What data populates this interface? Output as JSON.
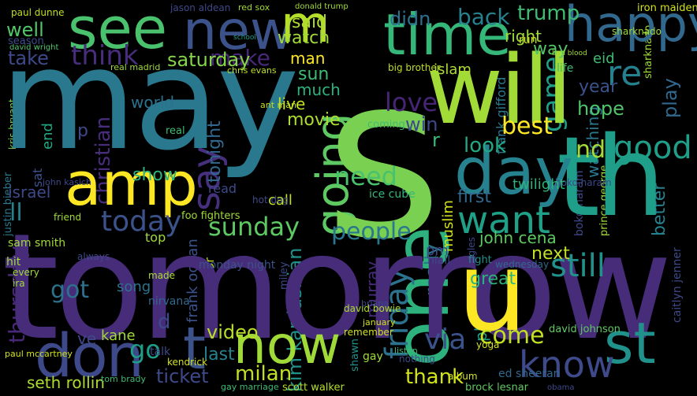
{
  "words": {
    "tomorrow": {
      "text": "tomorrow",
      "color": "#472c7a"
    },
    "may": {
      "text": "may",
      "color": "#2a788e"
    },
    "s": {
      "text": "s",
      "color": "#7ad151"
    },
    "will": {
      "text": "will",
      "color": "#a2da37"
    },
    "th": {
      "text": "th",
      "color": "#1f9e89"
    },
    "amp": {
      "text": "amp",
      "color": "#fde725"
    },
    "day": {
      "text": "day",
      "color": "#26828e"
    },
    "one": {
      "text": "one",
      "color": "#2db27d"
    },
    "u": {
      "text": "u",
      "color": "#fde725"
    },
    "time": {
      "text": "time",
      "color": "#35b779"
    },
    "happy": {
      "text": "happy",
      "color": "#31688e"
    },
    "see": {
      "text": "see",
      "color": "#4ac16d"
    },
    "new": {
      "text": "new",
      "color": "#3b528b"
    },
    "m": {
      "text": "m",
      "color": "#b5de2b"
    },
    "don": {
      "text": "don",
      "color": "#3e4989"
    },
    "t_bottom": {
      "text": "t",
      "color": "#3b528b"
    },
    "now": {
      "text": "now",
      "color": "#a0da39"
    },
    "st": {
      "text": "st",
      "color": "#21918c"
    },
    "know": {
      "text": "know",
      "color": "#3e4a89"
    },
    "friday": {
      "text": "friday",
      "color": "#2c728e"
    },
    "want": {
      "text": "want",
      "color": "#1fa187"
    },
    "going": {
      "text": "going",
      "color": "#5ec962"
    },
    "people": {
      "text": "people",
      "color": "#2a788e"
    },
    "say": {
      "text": "say",
      "color": "#46307e"
    },
    "sunday": {
      "text": "sunday",
      "color": "#5ec962"
    },
    "today": {
      "text": "today",
      "color": "#3b528b"
    },
    "still": {
      "text": "still",
      "color": "#21918c"
    },
    "good": {
      "text": "good",
      "color": "#1f9e89"
    },
    "come": {
      "text": "come",
      "color": "#c2df23"
    },
    "love": {
      "text": "love",
      "color": "#482475"
    },
    "think": {
      "text": "think",
      "color": "#472d7b"
    },
    "make": {
      "text": "make",
      "color": "#482878"
    },
    "back": {
      "text": "back",
      "color": "#26828e"
    },
    "trump": {
      "text": "trump",
      "color": "#3fbc73"
    },
    "didn": {
      "text": "didn",
      "color": "#2c728e"
    },
    "well": {
      "text": "well",
      "color": "#52c569"
    },
    "take": {
      "text": "take",
      "color": "#3e4a89"
    },
    "saturday": {
      "text": "saturday",
      "color": "#86d549"
    },
    "watch": {
      "text": "watch",
      "color": "#a0da39"
    },
    "said": {
      "text": "said",
      "color": "#addc30"
    },
    "game": {
      "text": "game",
      "color": "#1f9e89"
    },
    "nd": {
      "text": "nd",
      "color": "#a5db36"
    },
    "re": {
      "text": "re",
      "color": "#26818e"
    },
    "play": {
      "text": "play",
      "color": "#31688e"
    },
    "best": {
      "text": "best",
      "color": "#fde725"
    },
    "look": {
      "text": "look",
      "color": "#22a884"
    },
    "need": {
      "text": "need",
      "color": "#4ac16d"
    },
    "via": {
      "text": "via",
      "color": "#3b528b"
    },
    "kim_kardashian": {
      "text": "kim kardashian",
      "color": "#21918c"
    },
    "got": {
      "text": "got",
      "color": "#2c728e"
    },
    "go": {
      "text": "go",
      "color": "#1f9e89"
    },
    "thursday": {
      "text": "thursday",
      "color": "#482878"
    },
    "video": {
      "text": "video",
      "color": "#b8de29"
    },
    "ticket": {
      "text": "ticket",
      "color": "#3e4989"
    },
    "milan": {
      "text": "milan",
      "color": "#c2df23"
    },
    "thank": {
      "text": "thank",
      "color": "#d2e21b"
    },
    "last": {
      "text": "last",
      "color": "#26828e"
    },
    "seth_rollin": {
      "text": "seth rollin",
      "color": "#addc30"
    },
    "muslim": {
      "text": "muslim",
      "color": "#d2e21b"
    },
    "really": {
      "text": "really",
      "color": "#2a788e"
    },
    "great": {
      "text": "great",
      "color": "#2db27d"
    },
    "first": {
      "text": "first",
      "color": "#31688e"
    },
    "next": {
      "text": "next",
      "color": "#c2df23"
    },
    "hope": {
      "text": "hope",
      "color": "#50c46a"
    },
    "year": {
      "text": "year",
      "color": "#3b528b"
    },
    "tonight": {
      "text": "tonight",
      "color": "#31688e"
    },
    "show": {
      "text": "show",
      "color": "#2db27d"
    },
    "christian": {
      "text": "christian",
      "color": "#472d7b"
    },
    "israel": {
      "text": "israel",
      "color": "#3e4989"
    },
    "sat": {
      "text": "sat",
      "color": "#3b528b"
    },
    "ll": {
      "text": "ll",
      "color": "#26828e"
    },
    "end": {
      "text": "end",
      "color": "#22a884"
    },
    "world": {
      "text": "world",
      "color": "#2c728e"
    },
    "live": {
      "text": "live",
      "color": "#c2df23"
    },
    "sun": {
      "text": "sun",
      "color": "#3fbc73"
    },
    "much": {
      "text": "much",
      "color": "#2db27d"
    },
    "movie": {
      "text": "movie",
      "color": "#addc30"
    },
    "man": {
      "text": "man",
      "color": "#fde725"
    },
    "right": {
      "text": "right",
      "color": "#a0da39"
    },
    "way": {
      "text": "way",
      "color": "#52c569"
    },
    "run": {
      "text": "run",
      "color": "#d2e21b"
    },
    "life": {
      "text": "life",
      "color": "#3fbc73"
    },
    "watching": {
      "text": "watching",
      "color": "#2a788e"
    },
    "better": {
      "text": "better",
      "color": "#26828e"
    },
    "wednesday": {
      "text": "wednesday",
      "color": "#31688e"
    },
    "john_cena": {
      "text": "john cena",
      "color": "#5ec962"
    },
    "murray": {
      "text": "murray",
      "color": "#472d7b"
    },
    "playing": {
      "text": "playing",
      "color": "#1f9e89"
    },
    "frank_ocean": {
      "text": "frank ocean",
      "color": "#3b528b"
    },
    "kane": {
      "text": "kane",
      "color": "#a0da39"
    },
    "song": {
      "text": "song",
      "color": "#2c728e"
    },
    "nirvana": {
      "text": "nirvana",
      "color": "#31688e"
    },
    "ve": {
      "text": "ve",
      "color": "#3e4989"
    },
    "read": {
      "text": "read",
      "color": "#3e4a89"
    },
    "call": {
      "text": "call",
      "color": "#c2df23"
    },
    "ice_cube": {
      "text": "ice cube",
      "color": "#35b779"
    },
    "sam_smith": {
      "text": "sam smith",
      "color": "#a0da39"
    },
    "foo_fighters": {
      "text": "foo fighters",
      "color": "#a0da39"
    },
    "monday_night": {
      "text": "monday night",
      "color": "#3b528b"
    },
    "scott_walker": {
      "text": "scott walker",
      "color": "#b5de2b"
    },
    "david_johnson": {
      "text": "david johnson",
      "color": "#5ec962"
    },
    "brock_lesnar": {
      "text": "brock lesnar",
      "color": "#5ec962"
    },
    "ed_sheeran": {
      "text": "ed sheeran",
      "color": "#31688e"
    },
    "big_brother": {
      "text": "big brother",
      "color": "#c2df23"
    },
    "islam": {
      "text": "islam",
      "color": "#addc30"
    },
    "eid": {
      "text": "eid",
      "color": "#3fbc73"
    },
    "boko_haram": {
      "text": "boko haram",
      "color": "#3e4989"
    },
    "paul_dunne": {
      "text": "paul dunne",
      "color": "#c2df23"
    },
    "season": {
      "text": "season",
      "color": "#3e4989"
    },
    "david_wright": {
      "text": "david wright",
      "color": "#52c569"
    },
    "jason_aldean": {
      "text": "jason aldean",
      "color": "#3e4989"
    },
    "iron_maiden": {
      "text": "iron maiden",
      "color": "#d2e21b"
    },
    "sharknado": {
      "text": "sharknado",
      "color": "#a0da39"
    },
    "paul_mccartney": {
      "text": "paul mccartney",
      "color": "#d2e21b"
    },
    "coming": {
      "text": "coming",
      "color": "#3fbc73"
    },
    "twilight": {
      "text": "twilight",
      "color": "#2db27d"
    },
    "pm": {
      "text": "pm",
      "color": "#3e4989"
    },
    "red_sox": {
      "text": "red sox",
      "color": "#a0da39"
    },
    "school": {
      "text": "school",
      "color": "#1f9e89"
    },
    "kris_bryant": {
      "text": "kris bryant",
      "color": "#7ad151"
    },
    "justin_bieber": {
      "text": "justin bieber",
      "color": "#2a788e"
    },
    "remember": {
      "text": "remember",
      "color": "#d2e21b"
    },
    "niall": {
      "text": "niall",
      "color": "#3e4989"
    },
    "fight": {
      "text": "fight",
      "color": "#21918c"
    },
    "thor": {
      "text": "thor",
      "color": "#c2df23"
    },
    "made": {
      "text": "made",
      "color": "#addc30"
    },
    "kendrick": {
      "text": "kendrick",
      "color": "#d2e21b"
    },
    "talk": {
      "text": "talk",
      "color": "#3e4989"
    },
    "january": {
      "text": "january",
      "color": "#d2e21b"
    },
    "obama": {
      "text": "obama",
      "color": "#3e4989"
    },
    "album": {
      "text": "album",
      "color": "#d2e21b"
    },
    "shawn": {
      "text": "shawn",
      "color": "#21918c"
    },
    "david_bowie": {
      "text": "david bowie",
      "color": "#addc30"
    },
    "briana": {
      "text": "briana",
      "color": "#3e4989"
    },
    "frank_gifford": {
      "text": "frank gifford",
      "color": "#2a788e"
    },
    "top": {
      "text": "top",
      "color": "#a0da39"
    },
    "ira": {
      "text": "ira",
      "color": "#a0da39"
    },
    "d": {
      "text": "d",
      "color": "#3e4989"
    },
    "p": {
      "text": "p",
      "color": "#3e4989"
    },
    "r": {
      "text": "r",
      "color": "#3fbc73"
    },
    "win": {
      "text": "win",
      "color": "#3e4989"
    },
    "chris_evans": {
      "text": "chris evans",
      "color": "#c2df23"
    },
    "ant_man": {
      "text": "ant man",
      "color": "#c2df23"
    },
    "real_madrid": {
      "text": "real madrid",
      "color": "#a0da39"
    },
    "donald_trump": {
      "text": "donald trump",
      "color": "#a0da39"
    },
    "prince_george": {
      "text": "prince george",
      "color": "#a0da39"
    },
    "catlyn_jenner": {
      "text": "caitlyn jenner",
      "color": "#3e4989"
    },
    "miley": {
      "text": "miley",
      "color": "#3e4989"
    },
    "super_eagles": {
      "text": "super eagles",
      "color": "#3e4989"
    },
    "nothing": {
      "text": "nothing",
      "color": "#3e4989"
    },
    "listen": {
      "text": "listen",
      "color": "#3fbc73"
    },
    "real": {
      "text": "real",
      "color": "#3fbc73"
    },
    "gay": {
      "text": "gay",
      "color": "#a0da39"
    },
    "hot_dog": {
      "text": "hot dog",
      "color": "#3e4989"
    },
    "gay_marriage": {
      "text": "gay marriage",
      "color": "#3fbc73"
    },
    "tom_brady": {
      "text": "tom brady",
      "color": "#3fbc73"
    },
    "yoga": {
      "text": "yoga",
      "color": "#d2e21b"
    },
    "always": {
      "text": "always",
      "color": "#3e4989"
    },
    "hit": {
      "text": "hit",
      "color": "#a0da39"
    },
    "every": {
      "text": "every",
      "color": "#a0da39"
    },
    "friend": {
      "text": "friend",
      "color": "#a0da39"
    },
    "john_kasich": {
      "text": "john kasich",
      "color": "#3e4989"
    },
    "bad_blood": {
      "text": "bad blood",
      "color": "#a0da39"
    }
  }
}
